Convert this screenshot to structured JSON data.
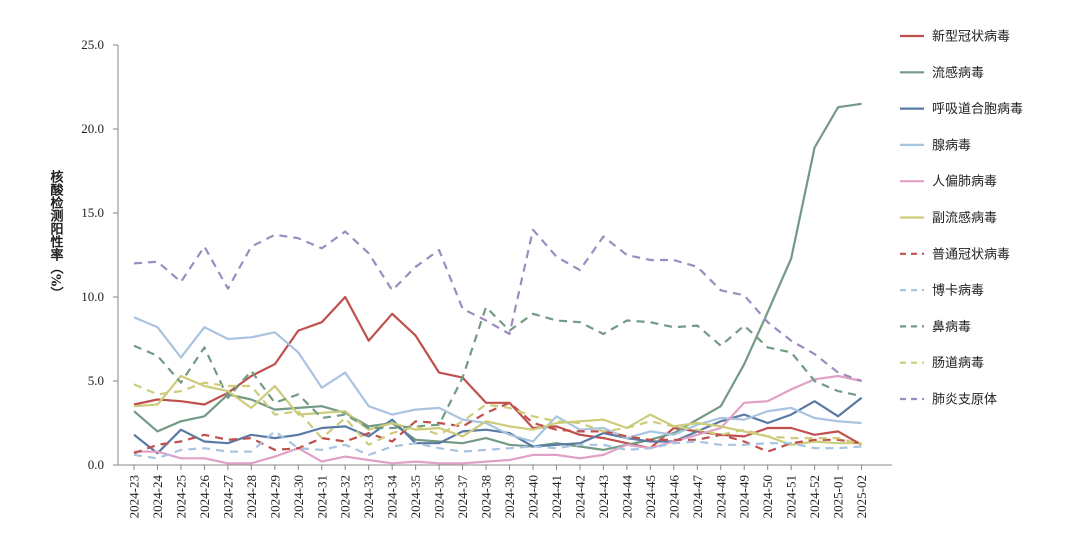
{
  "chart_data": {
    "type": "line",
    "title": "",
    "xlabel": "",
    "ylabel": "核酸检测阳性率（%）",
    "ylim": [
      0,
      25
    ],
    "yticks": [
      "0.0",
      "5.0",
      "10.0",
      "15.0",
      "20.0",
      "25.0"
    ],
    "grid": false,
    "legend_position": "right",
    "categories": [
      "2024-23",
      "2024-24",
      "2024-25",
      "2024-26",
      "2024-27",
      "2024-28",
      "2024-29",
      "2024-30",
      "2024-31",
      "2024-32",
      "2024-33",
      "2024-34",
      "2024-35",
      "2024-36",
      "2024-37",
      "2024-38",
      "2024-39",
      "2024-40",
      "2024-41",
      "2024-42",
      "2024-43",
      "2024-44",
      "2024-45",
      "2024-46",
      "2024-47",
      "2024-48",
      "2024-49",
      "2024-50",
      "2024-51",
      "2024-52",
      "2025-01",
      "2025-02"
    ],
    "series": [
      {
        "name": "新型冠状病毒",
        "color": "#c0504d",
        "dash": "solid",
        "values": [
          3.6,
          3.9,
          3.8,
          3.6,
          4.3,
          5.3,
          6.0,
          8.0,
          8.5,
          10.0,
          7.4,
          9.0,
          7.7,
          5.5,
          5.2,
          3.7,
          3.7,
          2.2,
          2.3,
          1.8,
          1.6,
          1.3,
          1.0,
          2.2,
          2.0,
          1.8,
          1.7,
          2.2,
          2.2,
          1.8,
          2.0,
          1.2
        ]
      },
      {
        "name": "流感病毒",
        "color": "#739a85",
        "dash": "solid",
        "values": [
          3.2,
          2.0,
          2.6,
          2.9,
          4.2,
          3.9,
          3.3,
          3.4,
          3.5,
          3.1,
          2.3,
          2.5,
          1.5,
          1.4,
          1.3,
          1.6,
          1.2,
          1.1,
          1.3,
          1.1,
          0.9,
          1.2,
          1.5,
          1.9,
          2.7,
          3.5,
          6.0,
          9.1,
          12.3,
          18.9,
          21.3,
          21.5
        ]
      },
      {
        "name": "呼吸道合胞病毒",
        "color": "#5a7aa4",
        "dash": "solid",
        "values": [
          1.8,
          0.7,
          2.1,
          1.4,
          1.3,
          1.8,
          1.6,
          1.8,
          2.2,
          2.3,
          1.7,
          2.7,
          1.3,
          1.3,
          2.0,
          2.1,
          1.9,
          1.1,
          1.2,
          1.3,
          1.9,
          1.6,
          1.4,
          1.4,
          2.0,
          2.6,
          3.0,
          2.5,
          3.0,
          3.8,
          2.9,
          4.0
        ]
      },
      {
        "name": "腺病毒",
        "color": "#a8c4e0",
        "dash": "solid",
        "values": [
          8.8,
          8.2,
          6.4,
          8.2,
          7.5,
          7.6,
          7.9,
          6.7,
          4.6,
          5.5,
          3.5,
          3.0,
          3.3,
          3.4,
          2.7,
          2.5,
          1.8,
          1.4,
          2.9,
          2.1,
          2.2,
          1.6,
          2.0,
          1.8,
          2.4,
          2.8,
          2.7,
          3.2,
          3.4,
          2.8,
          2.6,
          2.5
        ]
      },
      {
        "name": "人偏肺病毒",
        "color": "#e0a0c8",
        "dash": "solid",
        "values": [
          0.8,
          0.8,
          0.4,
          0.4,
          0.1,
          0.1,
          0.5,
          1.0,
          0.2,
          0.5,
          0.3,
          0.1,
          0.2,
          0.1,
          0.1,
          0.2,
          0.3,
          0.6,
          0.6,
          0.4,
          0.6,
          1.2,
          1.0,
          1.4,
          1.8,
          2.2,
          3.7,
          3.8,
          4.5,
          5.1,
          5.3,
          5.0
        ]
      },
      {
        "name": "副流感病毒",
        "color": "#cccc7a",
        "dash": "solid",
        "values": [
          3.5,
          3.6,
          5.3,
          4.7,
          4.4,
          3.4,
          4.7,
          3.0,
          3.1,
          3.2,
          2.1,
          2.5,
          2.1,
          2.2,
          1.7,
          2.6,
          2.3,
          2.1,
          2.5,
          2.6,
          2.7,
          2.2,
          3.0,
          2.3,
          2.5,
          2.3,
          2.0,
          1.7,
          1.2,
          1.4,
          1.3,
          1.3
        ]
      },
      {
        "name": "普通冠状病毒",
        "color": "#c0504d",
        "dash": "dash",
        "values": [
          0.7,
          1.2,
          1.4,
          1.8,
          1.5,
          1.6,
          0.9,
          1.0,
          1.6,
          1.4,
          1.9,
          1.4,
          2.6,
          2.5,
          2.3,
          3.1,
          3.7,
          2.5,
          2.1,
          2.0,
          2.0,
          1.7,
          1.5,
          1.5,
          1.5,
          1.8,
          1.4,
          0.8,
          1.3,
          1.5,
          1.5,
          1.3
        ]
      },
      {
        "name": "博卡病毒",
        "color": "#a8c4e0",
        "dash": "dash",
        "values": [
          0.6,
          0.4,
          0.9,
          1.0,
          0.8,
          0.8,
          2.0,
          1.0,
          0.9,
          1.2,
          0.6,
          1.1,
          1.3,
          1.0,
          0.8,
          0.9,
          1.0,
          1.1,
          1.0,
          1.2,
          1.2,
          0.9,
          1.0,
          1.3,
          1.4,
          1.2,
          1.2,
          1.3,
          1.3,
          1.0,
          1.0,
          1.1
        ]
      },
      {
        "name": "鼻病毒",
        "color": "#739a85",
        "dash": "dash",
        "values": [
          7.1,
          6.5,
          4.9,
          7.0,
          4.0,
          5.6,
          3.7,
          4.2,
          2.8,
          3.0,
          2.2,
          2.2,
          2.3,
          2.4,
          5.2,
          9.4,
          8.0,
          9.0,
          8.6,
          8.5,
          7.8,
          8.6,
          8.5,
          8.2,
          8.3,
          7.1,
          8.3,
          7.0,
          6.7,
          5.0,
          4.4,
          4.1
        ]
      },
      {
        "name": "肠道病毒",
        "color": "#cccc7a",
        "dash": "dash",
        "values": [
          4.8,
          4.2,
          4.4,
          4.9,
          4.7,
          4.7,
          3.0,
          3.2,
          1.6,
          2.8,
          1.2,
          1.9,
          2.3,
          1.8,
          2.6,
          3.6,
          3.4,
          2.9,
          2.6,
          2.5,
          2.0,
          2.2,
          2.6,
          2.3,
          2.1,
          1.8,
          2.1,
          1.7,
          1.6,
          1.6,
          1.6,
          1.2
        ]
      },
      {
        "name": "肺炎支原体",
        "color": "#9c8cc0",
        "dash": "dash",
        "values": [
          12.0,
          12.1,
          10.9,
          13.0,
          10.5,
          13.0,
          13.7,
          13.5,
          12.9,
          13.9,
          12.6,
          10.4,
          11.8,
          12.8,
          9.3,
          8.6,
          7.8,
          14.0,
          12.4,
          11.6,
          13.6,
          12.5,
          12.2,
          12.2,
          11.8,
          10.4,
          10.1,
          8.5,
          7.4,
          6.6,
          5.5,
          5.0
        ]
      }
    ]
  }
}
